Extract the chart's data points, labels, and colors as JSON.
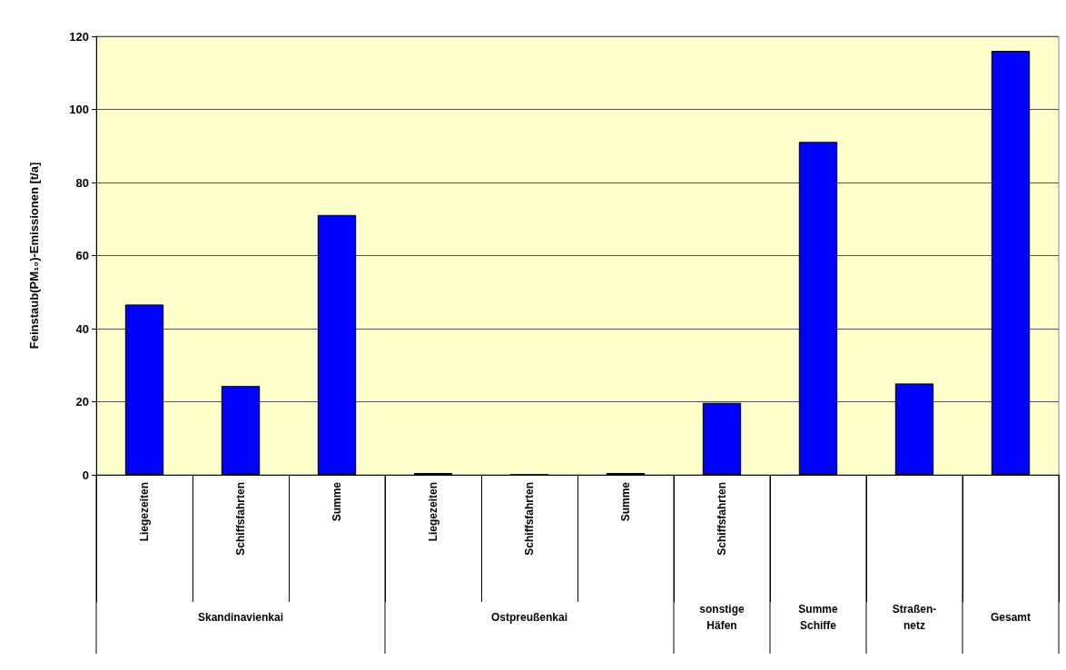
{
  "chart_data": {
    "type": "bar",
    "ylabel": "Feinstaub(PM₁₀)-Emissionen [t/a]",
    "categories": [
      "Liegezeiten",
      "Schiffsfahrten",
      "Summe",
      "Liegezeiten",
      "Schiffsfahrten",
      "Summe",
      "Schiffsfahrten",
      null,
      null,
      null
    ],
    "values": [
      46.6,
      24.3,
      71.1,
      0.5,
      0,
      0.5,
      19.7,
      91.1,
      25.0,
      116.0
    ],
    "color": "#0000ff",
    "ylim": [
      0,
      120
    ],
    "yticks": [
      0,
      20,
      40,
      60,
      80,
      100,
      120
    ],
    "grid": "y",
    "annotations": [
      "Skandinavienkai",
      "Ostpreußenkai",
      "sonstige\nHäfen",
      "Summe\nSchiffe",
      "Straßen-\nnetz",
      "Gesamt"
    ]
  }
}
